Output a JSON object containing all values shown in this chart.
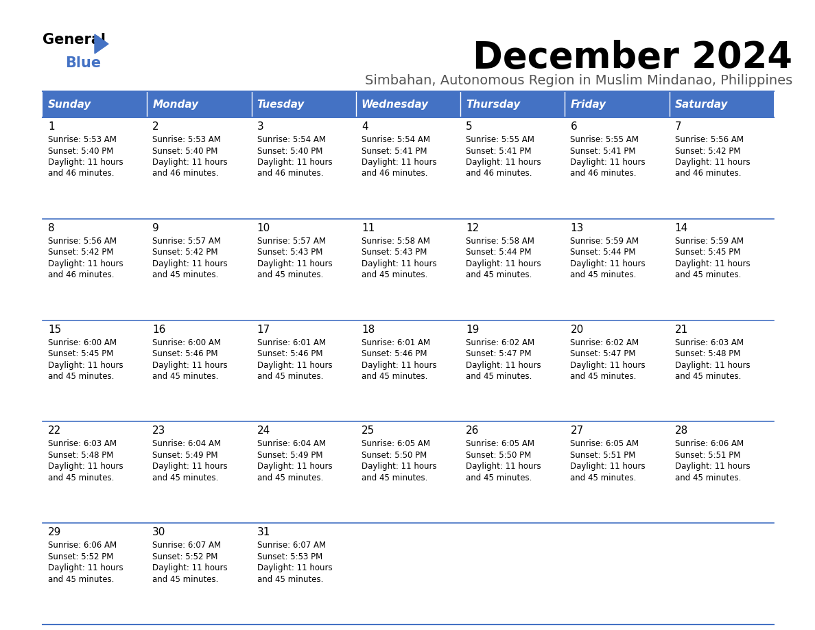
{
  "title": "December 2024",
  "subtitle": "Simbahan, Autonomous Region in Muslim Mindanao, Philippines",
  "days_of_week": [
    "Sunday",
    "Monday",
    "Tuesday",
    "Wednesday",
    "Thursday",
    "Friday",
    "Saturday"
  ],
  "header_bg": "#4472C4",
  "header_text": "#FFFFFF",
  "cell_bg": "#FFFFFF",
  "border_color": "#4472C4",
  "text_color": "#000000",
  "title_color": "#000000",
  "subtitle_color": "#555555",
  "calendar": [
    [
      {
        "day": 1,
        "sunrise": "5:53 AM",
        "sunset": "5:40 PM",
        "daylight": "11 hours and 46 minutes."
      },
      {
        "day": 2,
        "sunrise": "5:53 AM",
        "sunset": "5:40 PM",
        "daylight": "11 hours and 46 minutes."
      },
      {
        "day": 3,
        "sunrise": "5:54 AM",
        "sunset": "5:40 PM",
        "daylight": "11 hours and 46 minutes."
      },
      {
        "day": 4,
        "sunrise": "5:54 AM",
        "sunset": "5:41 PM",
        "daylight": "11 hours and 46 minutes."
      },
      {
        "day": 5,
        "sunrise": "5:55 AM",
        "sunset": "5:41 PM",
        "daylight": "11 hours and 46 minutes."
      },
      {
        "day": 6,
        "sunrise": "5:55 AM",
        "sunset": "5:41 PM",
        "daylight": "11 hours and 46 minutes."
      },
      {
        "day": 7,
        "sunrise": "5:56 AM",
        "sunset": "5:42 PM",
        "daylight": "11 hours and 46 minutes."
      }
    ],
    [
      {
        "day": 8,
        "sunrise": "5:56 AM",
        "sunset": "5:42 PM",
        "daylight": "11 hours and 46 minutes."
      },
      {
        "day": 9,
        "sunrise": "5:57 AM",
        "sunset": "5:42 PM",
        "daylight": "11 hours and 45 minutes."
      },
      {
        "day": 10,
        "sunrise": "5:57 AM",
        "sunset": "5:43 PM",
        "daylight": "11 hours and 45 minutes."
      },
      {
        "day": 11,
        "sunrise": "5:58 AM",
        "sunset": "5:43 PM",
        "daylight": "11 hours and 45 minutes."
      },
      {
        "day": 12,
        "sunrise": "5:58 AM",
        "sunset": "5:44 PM",
        "daylight": "11 hours and 45 minutes."
      },
      {
        "day": 13,
        "sunrise": "5:59 AM",
        "sunset": "5:44 PM",
        "daylight": "11 hours and 45 minutes."
      },
      {
        "day": 14,
        "sunrise": "5:59 AM",
        "sunset": "5:45 PM",
        "daylight": "11 hours and 45 minutes."
      }
    ],
    [
      {
        "day": 15,
        "sunrise": "6:00 AM",
        "sunset": "5:45 PM",
        "daylight": "11 hours and 45 minutes."
      },
      {
        "day": 16,
        "sunrise": "6:00 AM",
        "sunset": "5:46 PM",
        "daylight": "11 hours and 45 minutes."
      },
      {
        "day": 17,
        "sunrise": "6:01 AM",
        "sunset": "5:46 PM",
        "daylight": "11 hours and 45 minutes."
      },
      {
        "day": 18,
        "sunrise": "6:01 AM",
        "sunset": "5:46 PM",
        "daylight": "11 hours and 45 minutes."
      },
      {
        "day": 19,
        "sunrise": "6:02 AM",
        "sunset": "5:47 PM",
        "daylight": "11 hours and 45 minutes."
      },
      {
        "day": 20,
        "sunrise": "6:02 AM",
        "sunset": "5:47 PM",
        "daylight": "11 hours and 45 minutes."
      },
      {
        "day": 21,
        "sunrise": "6:03 AM",
        "sunset": "5:48 PM",
        "daylight": "11 hours and 45 minutes."
      }
    ],
    [
      {
        "day": 22,
        "sunrise": "6:03 AM",
        "sunset": "5:48 PM",
        "daylight": "11 hours and 45 minutes."
      },
      {
        "day": 23,
        "sunrise": "6:04 AM",
        "sunset": "5:49 PM",
        "daylight": "11 hours and 45 minutes."
      },
      {
        "day": 24,
        "sunrise": "6:04 AM",
        "sunset": "5:49 PM",
        "daylight": "11 hours and 45 minutes."
      },
      {
        "day": 25,
        "sunrise": "6:05 AM",
        "sunset": "5:50 PM",
        "daylight": "11 hours and 45 minutes."
      },
      {
        "day": 26,
        "sunrise": "6:05 AM",
        "sunset": "5:50 PM",
        "daylight": "11 hours and 45 minutes."
      },
      {
        "day": 27,
        "sunrise": "6:05 AM",
        "sunset": "5:51 PM",
        "daylight": "11 hours and 45 minutes."
      },
      {
        "day": 28,
        "sunrise": "6:06 AM",
        "sunset": "5:51 PM",
        "daylight": "11 hours and 45 minutes."
      }
    ],
    [
      {
        "day": 29,
        "sunrise": "6:06 AM",
        "sunset": "5:52 PM",
        "daylight": "11 hours and 45 minutes."
      },
      {
        "day": 30,
        "sunrise": "6:07 AM",
        "sunset": "5:52 PM",
        "daylight": "11 hours and 45 minutes."
      },
      {
        "day": 31,
        "sunrise": "6:07 AM",
        "sunset": "5:53 PM",
        "daylight": "11 hours and 45 minutes."
      },
      null,
      null,
      null,
      null
    ]
  ]
}
